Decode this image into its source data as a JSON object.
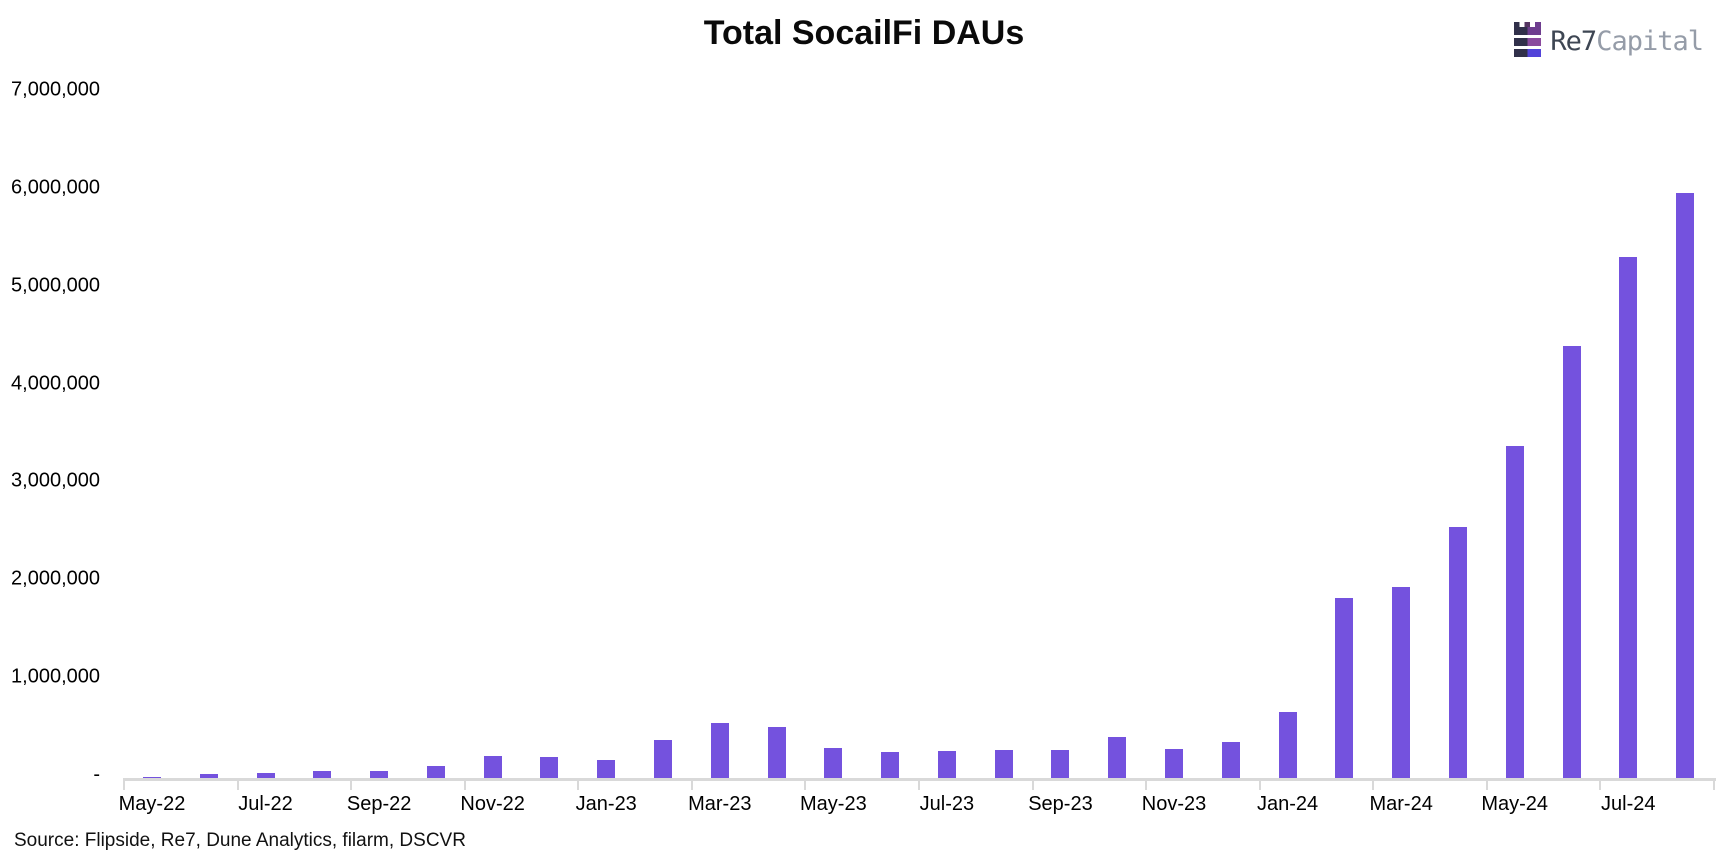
{
  "header": {
    "title": "Total SocailFi DAUs"
  },
  "logo": {
    "name": "Re7 Capital",
    "text_primary": "Re7",
    "text_secondary": "Capital",
    "colors": {
      "navy": "#31304a",
      "purple_top": "#6e3d8f",
      "purple_mid": "#8a4a9e",
      "indigo_bottom": "#5243d9",
      "text_primary": "#3e4653",
      "text_secondary": "#959ca8"
    }
  },
  "chart_data": {
    "type": "bar",
    "title": "Total SocailFi DAUs",
    "xlabel": "",
    "ylabel": "",
    "ylim": [
      0,
      7000000
    ],
    "grid": false,
    "legend": "none",
    "bar_color": "#7452de",
    "axis_color": "#d9d9d9",
    "categories": [
      "May-22",
      "Jun-22",
      "Jul-22",
      "Aug-22",
      "Sep-22",
      "Oct-22",
      "Nov-22",
      "Dec-22",
      "Jan-23",
      "Feb-23",
      "Mar-23",
      "Apr-23",
      "May-23",
      "Jun-23",
      "Jul-23",
      "Aug-23",
      "Sep-23",
      "Oct-23",
      "Nov-23",
      "Dec-23",
      "Jan-24",
      "Feb-24",
      "Mar-24",
      "Apr-24",
      "May-24",
      "Jun-24",
      "Jul-24",
      "Aug-24"
    ],
    "values": [
      10000,
      45000,
      55000,
      75000,
      70000,
      120000,
      220000,
      215000,
      185000,
      390000,
      555000,
      520000,
      310000,
      260000,
      270000,
      285000,
      285000,
      420000,
      290000,
      370000,
      670000,
      1830000,
      1940000,
      2550000,
      3380000,
      4400000,
      5300000,
      5950000
    ],
    "x_tick_labels": [
      "May-22",
      "Jul-22",
      "Sep-22",
      "Nov-22",
      "Jan-23",
      "Mar-23",
      "May-23",
      "Jul-23",
      "Sep-23",
      "Nov-23",
      "Jan-24",
      "Mar-24",
      "May-24",
      "Jul-24"
    ],
    "y_tick_labels": [
      "7,000,000",
      "6,000,000",
      "5,000,000",
      "4,000,000",
      "3,000,000",
      "2,000,000",
      "1,000,000",
      "-"
    ]
  },
  "footer": {
    "source": "Source: Flipside, Re7, Dune Analytics, filarm, DSCVR"
  }
}
